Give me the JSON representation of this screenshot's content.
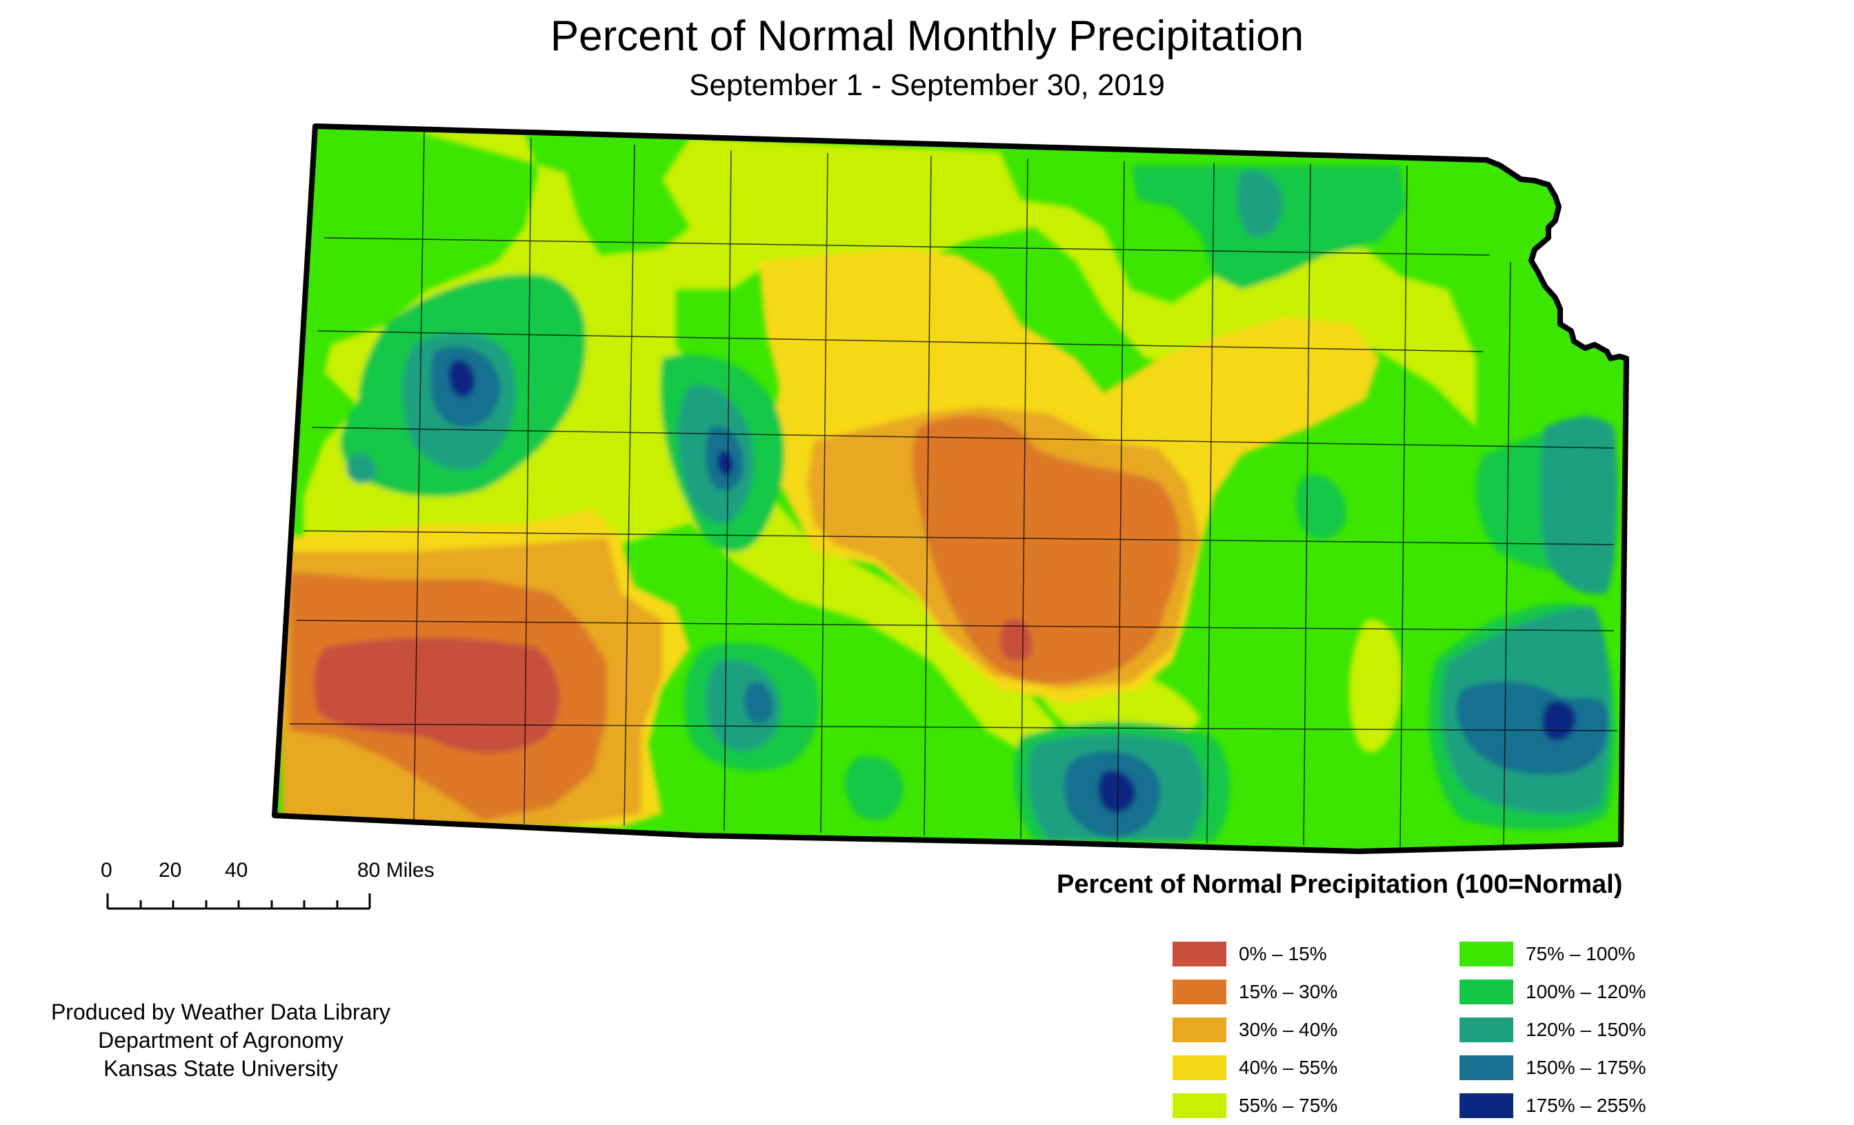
{
  "title": "Percent of Normal Monthly Precipitation",
  "subtitle": "September 1 - September 30, 2019",
  "scale_bar": {
    "labels": [
      "0",
      "20",
      "40",
      "80 Miles"
    ]
  },
  "legend": {
    "title": "Percent of Normal Precipitation (100=Normal)",
    "items": [
      {
        "label": "0% – 15%",
        "color": "#c8503c"
      },
      {
        "label": "15% – 30%",
        "color": "#dc7828"
      },
      {
        "label": "30% – 40%",
        "color": "#e8a820"
      },
      {
        "label": "40% – 55%",
        "color": "#f5d814"
      },
      {
        "label": "55% – 75%",
        "color": "#c8f000"
      },
      {
        "label": "75% – 100%",
        "color": "#3ce600"
      },
      {
        "label": "100% – 120%",
        "color": "#14c846"
      },
      {
        "label": "120% – 150%",
        "color": "#1ea080"
      },
      {
        "label": "150% – 175%",
        "color": "#187090"
      },
      {
        "label": "175% – 255%",
        "color": "#0a2882"
      }
    ]
  },
  "credit": {
    "line1": "Produced by Weather Data Library",
    "line2": "Department of Agronomy",
    "line3": "Kansas State University"
  },
  "colors": {
    "background": "#ffffff",
    "border": "#000000",
    "county_lines": "#000000"
  }
}
